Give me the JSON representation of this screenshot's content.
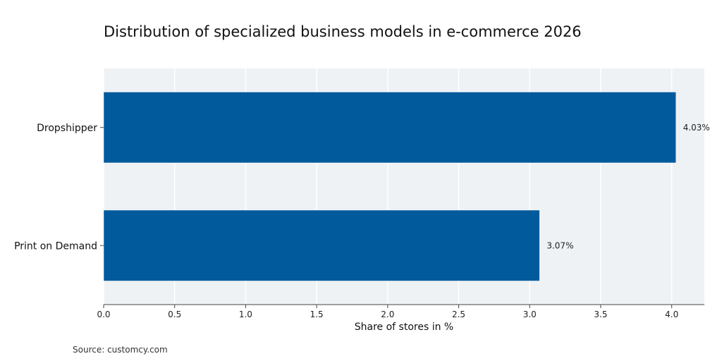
{
  "chart_data": {
    "type": "bar",
    "orientation": "horizontal",
    "title": "Distribution of specialized business models in e-commerce 2026",
    "categories": [
      "Dropshipper",
      "Print on Demand"
    ],
    "values": [
      4.03,
      3.07
    ],
    "data_labels": [
      "4.03%",
      "3.07%"
    ],
    "xlabel": "Share of stores in %",
    "ylabel": "",
    "xlim": [
      0,
      4.23
    ],
    "xticks": [
      "0.0",
      "0.5",
      "1.0",
      "1.5",
      "2.0",
      "2.5",
      "3.0",
      "3.5",
      "4.0"
    ],
    "grid": "vertical",
    "bar_color": "#005a9c",
    "background_color": "#eef2f5",
    "source": "Source: customcy.com"
  }
}
